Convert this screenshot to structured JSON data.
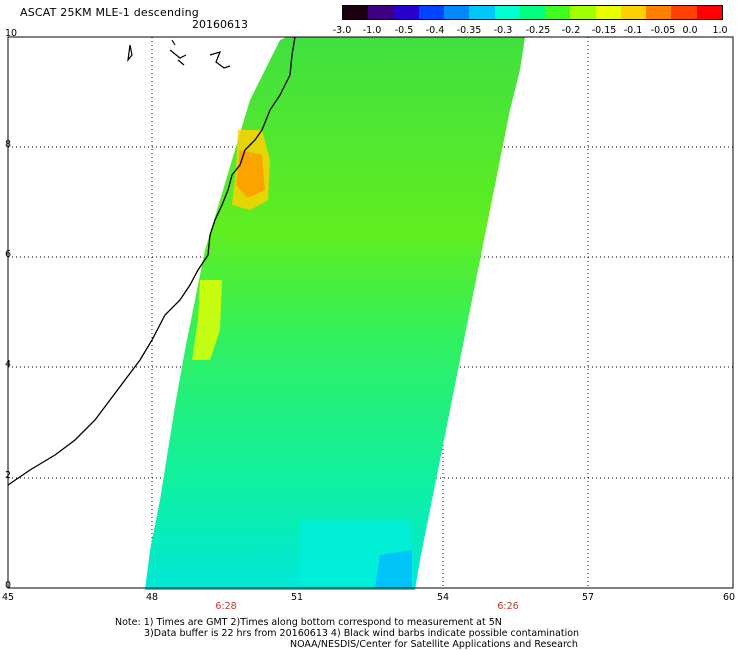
{
  "header": {
    "title": "ASCAT 25KM MLE-1 descending",
    "date": "20160613"
  },
  "colorbar": {
    "labels": [
      "-3.0",
      "-1.0",
      "-0.5",
      "-0.4",
      "-0.35",
      "-0.3",
      "-0.25",
      "-0.2",
      "-0.15",
      "-0.1",
      "-0.05",
      "0.0",
      "1.0"
    ],
    "colors": [
      "#1a0010",
      "#3d0080",
      "#2a00d0",
      "#0044ff",
      "#0088ff",
      "#00c8ff",
      "#00ffd0",
      "#00ff80",
      "#40ff20",
      "#a0ff00",
      "#e8ff00",
      "#ffd000",
      "#ff8000",
      "#ff4000",
      "#ff0000"
    ]
  },
  "map": {
    "lat_labels": [
      "10",
      "8",
      "6",
      "4",
      "2",
      "0"
    ],
    "lon_labels": [
      "45",
      "48",
      "51",
      "54",
      "57",
      "60"
    ],
    "pass_times": [
      "6:28",
      "6:26"
    ]
  },
  "notes": {
    "line1": "Note: 1) Times are GMT 2)Times along bottom correspond to measurement at 5N",
    "line2": "3)Data buffer is 22 hrs from 20160613 4) Black wind barbs indicate possible contamination",
    "line3": "NOAA/NESDIS/Center for Satellite Applications and Research"
  }
}
